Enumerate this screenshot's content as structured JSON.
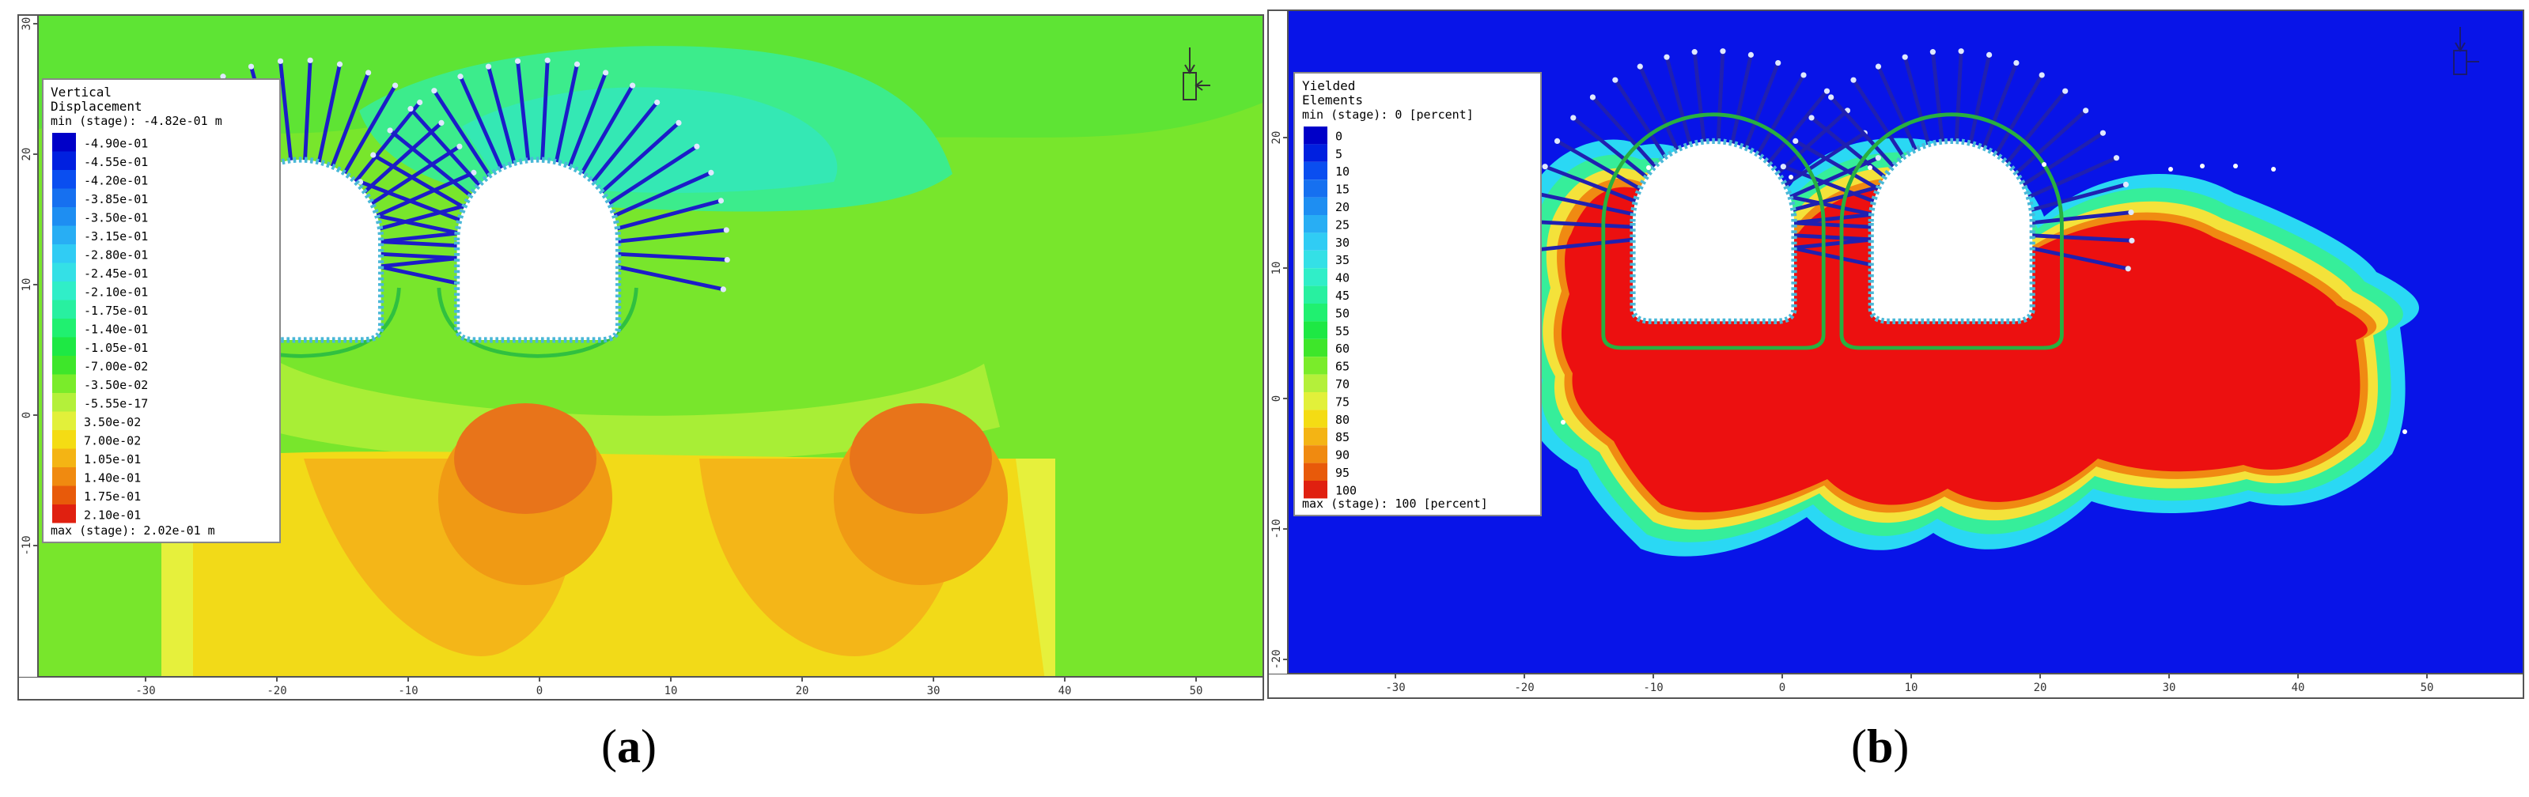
{
  "panel_a": {
    "legend_title_1": "Vertical",
    "legend_title_2": "Displacement",
    "legend_min": "min (stage): -4.82e-01 m",
    "legend_max": "max (stage): 2.02e-01 m",
    "legend_labels": [
      "-4.90e-01",
      "-4.55e-01",
      "-4.20e-01",
      "-3.85e-01",
      "-3.50e-01",
      "-3.15e-01",
      "-2.80e-01",
      "-2.45e-01",
      "-2.10e-01",
      "-1.75e-01",
      "-1.40e-01",
      "-1.05e-01",
      "-7.00e-02",
      "-3.50e-02",
      "-5.55e-17",
      "3.50e-02",
      "7.00e-02",
      "1.05e-01",
      "1.40e-01",
      "1.75e-01",
      "2.10e-01"
    ],
    "legend_colors": [
      "#0000c8",
      "#0020e0",
      "#0a4ef0",
      "#1670f0",
      "#1e8ef2",
      "#28aef4",
      "#30ccf4",
      "#34e0e6",
      "#30eec8",
      "#28f0a0",
      "#20f070",
      "#1ee844",
      "#3ee62a",
      "#7aec2a",
      "#b4f03a",
      "#e2f03a",
      "#f4dc14",
      "#f4b414",
      "#f08a10",
      "#e85a0a",
      "#e02010"
    ],
    "x_ticks": [
      "-30",
      "-20",
      "-10",
      "0",
      "10",
      "20",
      "30",
      "40",
      "50"
    ],
    "y_ticks": [
      "30",
      "20",
      "10",
      "0",
      "-10"
    ],
    "caption": "a"
  },
  "panel_b": {
    "legend_title_1": "Yielded",
    "legend_title_2": "Elements",
    "legend_min": "min (stage): 0 [percent]",
    "legend_max": "max (stage): 100 [percent]",
    "legend_labels": [
      "0",
      "5",
      "10",
      "15",
      "20",
      "25",
      "30",
      "35",
      "40",
      "45",
      "50",
      "55",
      "60",
      "65",
      "70",
      "75",
      "80",
      "85",
      "90",
      "95",
      "100"
    ],
    "legend_colors": [
      "#0000c8",
      "#0020e0",
      "#0a4ef0",
      "#1670f0",
      "#1e8ef2",
      "#28aef4",
      "#30ccf4",
      "#34e0e6",
      "#30eec8",
      "#28f0a0",
      "#20f070",
      "#1ee844",
      "#3ee62a",
      "#7aec2a",
      "#b4f03a",
      "#e2f03a",
      "#f4dc14",
      "#f4b414",
      "#f08a10",
      "#e85a0a",
      "#e02010"
    ],
    "x_ticks": [
      "-30",
      "-20",
      "-10",
      "0",
      "10",
      "20",
      "30",
      "40",
      "50"
    ],
    "y_ticks": [
      "20",
      "10",
      "0",
      "-10",
      "-20"
    ],
    "caption": "b"
  }
}
